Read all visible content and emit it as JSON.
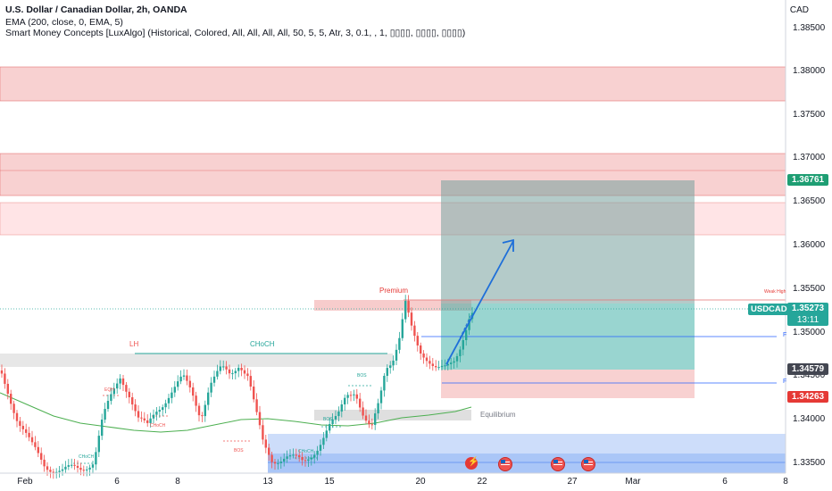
{
  "header": {
    "title": "U.S. Dollar / Canadian Dollar, 2h, OANDA",
    "indicator_1": "EMA (200, close, 0, EMA, 5)",
    "indicator_2": "Smart Money Concepts [LuxAlgo] (Historical, Colored, All, All, All, All, 50, 5, 5, Atr, 3, 0.1, , 1, ▯▯▯▯, ▯▯▯▯, ▯▯▯▯)"
  },
  "currency": "CAD",
  "y_axis": [
    "1.38500",
    "1.38000",
    "1.37500",
    "1.37000",
    "1.36500",
    "1.36000",
    "1.35500",
    "1.35000",
    "1.34500",
    "1.34000",
    "1.33500"
  ],
  "x_axis": [
    "Feb",
    "6",
    "8",
    "13",
    "15",
    "20",
    "22",
    "27",
    "Mar",
    "6",
    "8"
  ],
  "price_tags": {
    "target": "1.36761",
    "current": "1.35273",
    "countdown": "13:11",
    "level": "1.34579",
    "stop": "1.34263"
  },
  "symbol_badge": "USDCAD",
  "annotations": {
    "premium": "Premium",
    "equilibrium": "Equilibrium",
    "weak_high": "Weak High",
    "lh": "LH",
    "choch_main": "CHoCH",
    "choch_small_1": "CHoCH",
    "choch_small_2": "CHoCH",
    "choch_small_3": "CHoCH",
    "eqh": "EQH",
    "bos_1": "BOS",
    "bos_2": "BOS",
    "bos_3": "BOS",
    "r1": "F",
    "r2": "F"
  },
  "colors": {
    "up": "#26a69a",
    "down": "#ef5350",
    "target_tag": "#1e9e73",
    "stop_tag": "#e53935",
    "level_tag": "#434651",
    "ema": "#4caf50",
    "arrow": "#1e6fd9"
  }
}
